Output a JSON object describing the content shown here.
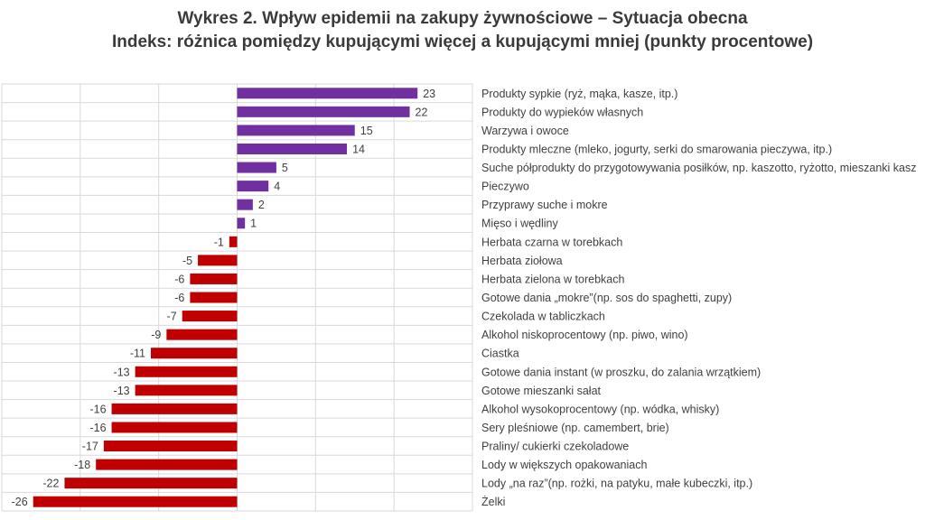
{
  "chart_data": {
    "type": "bar",
    "orientation": "horizontal",
    "title": "Wykres 2. Wpływ epidemii na zakupy żywnościowe – Sytuacja obecna",
    "subtitle": "Indeks: różnica pomiędzy kupującymi więcej a kupującymi mniej (punkty procentowe)",
    "xlabel": "",
    "ylabel": "",
    "xlim": [
      -30,
      30
    ],
    "grid": true,
    "legend": "none",
    "colors": {
      "positive": "#7030a0",
      "negative": "#c00000"
    },
    "categories": [
      "Produkty sypkie (ryż, mąka, kasze, itp.)",
      "Produkty do wypieków własnych",
      "Warzywa i owoce",
      "Produkty mleczne (mleko, jogurty, serki do smarowania pieczywa, itp.)",
      "Suche półprodukty do przygotowywania posiłków, np. kaszotto, ryżotto, mieszanki kasz",
      "Pieczywo",
      "Przyprawy suche i mokre",
      "Mięso i wędliny",
      "Herbata czarna w torebkach",
      "Herbata ziołowa",
      "Herbata zielona w torebkach",
      "Gotowe dania „mokre”(np. sos do spaghetti, zupy)",
      "Czekolada w tabliczkach",
      "Alkohol niskoprocentowy (np. piwo, wino)",
      "Ciastka",
      "Gotowe dania instant (w proszku, do zalania wrzątkiem)",
      "Gotowe mieszanki sałat",
      "Alkohol wysokoprocentowy (np. wódka, whisky)",
      "Sery pleśniowe (np. camembert, brie)",
      "Praliny/ cukierki czekoladowe",
      "Lody w większych opakowaniach",
      "Lody „na raz”(np. rożki, na patyku, małe kubeczki, itp.)",
      "Żelki"
    ],
    "values": [
      23,
      22,
      15,
      14,
      5,
      4,
      2,
      1,
      -1,
      -5,
      -6,
      -6,
      -7,
      -9,
      -11,
      -13,
      -13,
      -16,
      -16,
      -17,
      -18,
      -22,
      -26
    ]
  }
}
